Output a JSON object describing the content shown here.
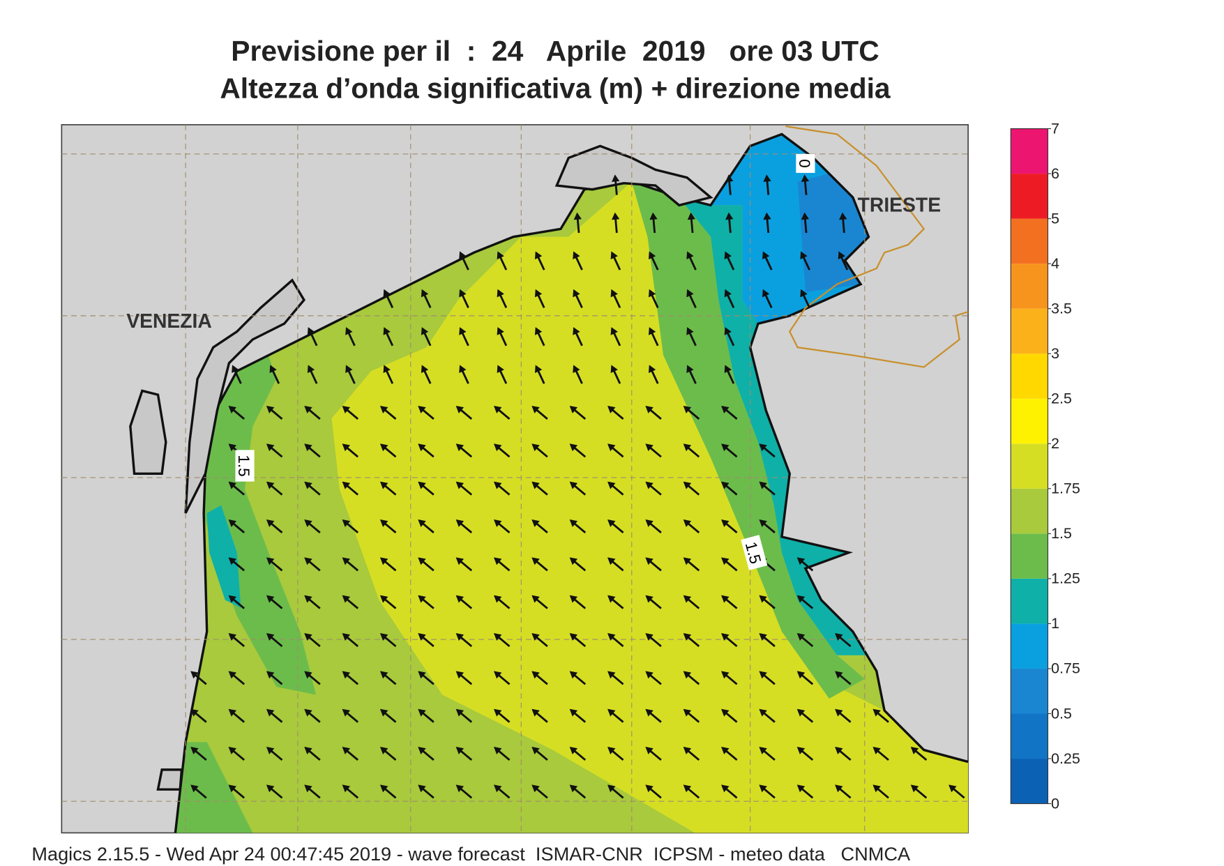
{
  "title": [
    "Previsione per il  :  24   Aprile  2019   ore 03 UTC",
    "Altezza d’onda significativa (m) + direzione media"
  ],
  "places": [
    "VENEZIA",
    "TRIESTE"
  ],
  "contour_labels": [
    "1.5",
    "1.5",
    "0"
  ],
  "colorbar": {
    "ticks": [
      0,
      0.25,
      0.5,
      0.75,
      1,
      1.25,
      1.5,
      1.75,
      2,
      2.5,
      3,
      3.5,
      4,
      5,
      6,
      7
    ],
    "colors": [
      "#0b62b4",
      "#1274c4",
      "#1a86d2",
      "#0aa0e0",
      "#0fb0a8",
      "#6cbc4c",
      "#a8ca3c",
      "#d6de24",
      "#fff200",
      "#ffd800",
      "#fbb21a",
      "#f7941d",
      "#f37021",
      "#ed1c24",
      "#ec1670"
    ]
  },
  "footer": "Magics 2.15.5 - Wed Apr 24 00:47:45 2019 - wave forecast  ISMAR-CNR  ICPSM - meteo data   CNMCA"
}
